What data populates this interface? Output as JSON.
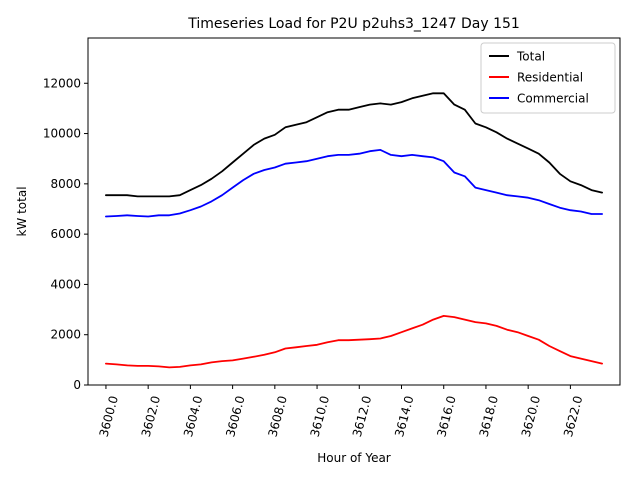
{
  "chart_data": {
    "type": "line",
    "title": "Timeseries Load for P2U p2uhs3_1247  Day 151",
    "xlabel": "Hour of Year",
    "ylabel": "kW total",
    "xlim": [
      3599.15,
      3624.35
    ],
    "ylim": [
      0,
      13800
    ],
    "xticks": [
      3600,
      3602,
      3604,
      3606,
      3608,
      3610,
      3612,
      3614,
      3616,
      3618,
      3620,
      3622
    ],
    "xtick_labels": [
      "3600.0",
      "3602.0",
      "3604.0",
      "3606.0",
      "3608.0",
      "3610.0",
      "3612.0",
      "3614.0",
      "3616.0",
      "3618.0",
      "3620.0",
      "3622.0"
    ],
    "yticks": [
      0,
      2000,
      4000,
      6000,
      8000,
      10000,
      12000
    ],
    "ytick_labels": [
      "0",
      "2000",
      "4000",
      "6000",
      "8000",
      "10000",
      "12000"
    ],
    "legend_position": "top-right",
    "x": [
      3600.0,
      3600.5,
      3601.0,
      3601.5,
      3602.0,
      3602.5,
      3603.0,
      3603.5,
      3604.0,
      3604.5,
      3605.0,
      3605.5,
      3606.0,
      3606.5,
      3607.0,
      3607.5,
      3608.0,
      3608.5,
      3609.0,
      3609.5,
      3610.0,
      3610.5,
      3611.0,
      3611.5,
      3612.0,
      3612.5,
      3613.0,
      3613.5,
      3614.0,
      3614.5,
      3615.0,
      3615.5,
      3616.0,
      3616.5,
      3617.0,
      3617.5,
      3618.0,
      3618.5,
      3619.0,
      3619.5,
      3620.0,
      3620.5,
      3621.0,
      3621.5,
      3622.0,
      3622.5,
      3623.0,
      3623.5
    ],
    "series": [
      {
        "name": "Total",
        "color": "#000000",
        "values": [
          7550,
          7550,
          7550,
          7500,
          7500,
          7500,
          7500,
          7550,
          7750,
          7950,
          8200,
          8500,
          8850,
          9200,
          9550,
          9800,
          9950,
          10250,
          10350,
          10450,
          10650,
          10850,
          10950,
          10950,
          11050,
          11150,
          11200,
          11150,
          11250,
          11400,
          11500,
          11600,
          11600,
          11150,
          10950,
          10400,
          10250,
          10050,
          9800,
          9600,
          9400,
          9200,
          8850,
          8400,
          8100,
          7950,
          7750,
          7650
        ]
      },
      {
        "name": "Residential",
        "color": "#ff0000",
        "values": [
          850,
          820,
          780,
          760,
          760,
          740,
          700,
          720,
          780,
          820,
          900,
          950,
          980,
          1050,
          1120,
          1200,
          1300,
          1450,
          1500,
          1550,
          1600,
          1700,
          1780,
          1780,
          1800,
          1820,
          1850,
          1950,
          2100,
          2250,
          2400,
          2600,
          2750,
          2700,
          2600,
          2500,
          2450,
          2350,
          2200,
          2100,
          1950,
          1800,
          1550,
          1350,
          1150,
          1050,
          950,
          850
        ]
      },
      {
        "name": "Commercial",
        "color": "#0000ff",
        "values": [
          6700,
          6720,
          6750,
          6720,
          6700,
          6750,
          6750,
          6820,
          6950,
          7100,
          7300,
          7550,
          7850,
          8150,
          8400,
          8550,
          8650,
          8800,
          8850,
          8900,
          9000,
          9100,
          9150,
          9150,
          9200,
          9300,
          9350,
          9150,
          9100,
          9150,
          9100,
          9050,
          8900,
          8450,
          8300,
          7850,
          7750,
          7650,
          7550,
          7500,
          7450,
          7350,
          7200,
          7050,
          6950,
          6900,
          6800,
          6800
        ]
      }
    ]
  }
}
